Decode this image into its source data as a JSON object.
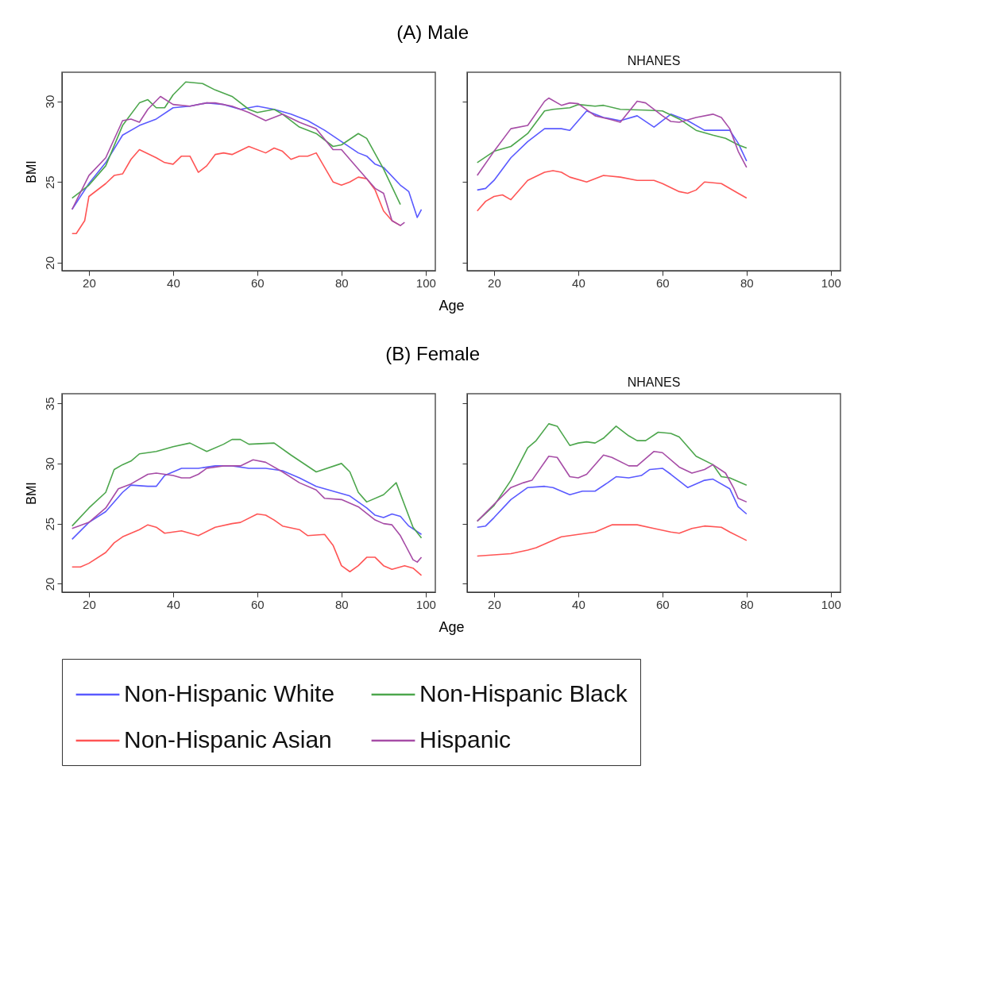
{
  "chart_data": [
    {
      "type": "line",
      "title": "(A) Male",
      "xlabel": "Age",
      "ylabel": "BMI",
      "xlim": [
        13.6,
        102.3
      ],
      "xticks": [
        20,
        40,
        60,
        80,
        100
      ],
      "ylim": [
        19.5,
        31.8
      ],
      "yticks": [
        20,
        25,
        30
      ],
      "grid": false,
      "legend": "bottom",
      "series": [
        {
          "name": "Non-Hispanic White",
          "color": "#5a5aff",
          "x": [
            16,
            20,
            24,
            28,
            32,
            36,
            40,
            44,
            48,
            52,
            56,
            60,
            64,
            68,
            72,
            76,
            80,
            84,
            86,
            88,
            90,
            94,
            96,
            98,
            99
          ],
          "values": [
            23.3,
            24.9,
            26.2,
            27.9,
            28.5,
            28.9,
            29.6,
            29.7,
            29.9,
            29.8,
            29.5,
            29.7,
            29.5,
            29.2,
            28.8,
            28.2,
            27.5,
            26.8,
            26.6,
            26.1,
            25.9,
            24.8,
            24.4,
            22.8,
            23.3
          ]
        },
        {
          "name": "Non-Hispanic Black",
          "color": "#4ca64c",
          "x": [
            16,
            20,
            24,
            28,
            32,
            34,
            36,
            38,
            40,
            43,
            47,
            50,
            54,
            58,
            60,
            64,
            66,
            70,
            74,
            78,
            80,
            84,
            86,
            90,
            94
          ],
          "values": [
            24.0,
            24.8,
            26.0,
            28.5,
            29.9,
            30.1,
            29.6,
            29.6,
            30.4,
            31.2,
            31.1,
            30.7,
            30.3,
            29.5,
            29.3,
            29.5,
            29.2,
            28.4,
            28.0,
            27.2,
            27.3,
            28.0,
            27.7,
            25.8,
            23.6
          ]
        },
        {
          "name": "Non-Hispanic Asian",
          "color": "#ff5555",
          "x": [
            16,
            17,
            19,
            20,
            24,
            26,
            28,
            30,
            32,
            36,
            38,
            40,
            42,
            44,
            46,
            48,
            50,
            52,
            54,
            58,
            62,
            64,
            66,
            68,
            70,
            72,
            74,
            78,
            80,
            82,
            84,
            86,
            88,
            90,
            92,
            94
          ],
          "values": [
            21.8,
            21.8,
            22.6,
            24.1,
            24.9,
            25.4,
            25.5,
            26.4,
            27.0,
            26.5,
            26.2,
            26.1,
            26.6,
            26.6,
            25.6,
            26.0,
            26.7,
            26.8,
            26.7,
            27.2,
            26.8,
            27.1,
            26.9,
            26.4,
            26.6,
            26.6,
            26.8,
            25.0,
            24.8,
            25.0,
            25.3,
            25.2,
            24.5,
            23.2,
            22.6,
            22.3
          ]
        },
        {
          "name": "Hispanic",
          "color": "#a64ca6",
          "x": [
            16,
            20,
            24,
            28,
            30,
            32,
            34,
            37,
            40,
            44,
            48,
            50,
            54,
            58,
            62,
            66,
            70,
            74,
            78,
            80,
            84,
            88,
            90,
            92,
            94,
            95
          ],
          "values": [
            23.3,
            25.4,
            26.5,
            28.8,
            28.9,
            28.7,
            29.5,
            30.3,
            29.8,
            29.7,
            29.9,
            29.9,
            29.7,
            29.3,
            28.8,
            29.2,
            28.7,
            28.3,
            27.0,
            27.0,
            25.8,
            24.6,
            24.3,
            22.6,
            22.3,
            22.5
          ]
        }
      ]
    },
    {
      "type": "line",
      "subtitle": "NHANES",
      "xlim": [
        13.6,
        102.3
      ],
      "xticks": [
        20,
        40,
        60,
        80,
        100
      ],
      "ylim": [
        19.5,
        31.8
      ],
      "yticks": [
        20,
        25,
        30
      ],
      "grid": false,
      "legend": "bottom",
      "tick_labels": "x",
      "series": [
        {
          "name": "Non-Hispanic White",
          "color": "#5a5aff",
          "x": [
            16,
            18,
            20,
            24,
            28,
            32,
            36,
            38,
            42,
            46,
            50,
            54,
            58,
            62,
            66,
            70,
            74,
            76,
            78,
            80
          ],
          "values": [
            24.5,
            24.6,
            25.1,
            26.5,
            27.5,
            28.3,
            28.3,
            28.2,
            29.4,
            29.0,
            28.8,
            29.1,
            28.4,
            29.2,
            28.8,
            28.2,
            28.2,
            28.2,
            27.4,
            26.3
          ]
        },
        {
          "name": "Non-Hispanic Black",
          "color": "#4ca64c",
          "x": [
            16,
            20,
            24,
            28,
            32,
            34,
            38,
            40,
            44,
            46,
            50,
            56,
            60,
            64,
            68,
            72,
            75,
            78,
            80
          ],
          "values": [
            26.2,
            26.9,
            27.2,
            28.0,
            29.4,
            29.5,
            29.6,
            29.8,
            29.7,
            29.75,
            29.5,
            29.45,
            29.4,
            28.9,
            28.2,
            27.9,
            27.7,
            27.3,
            27.1
          ]
        },
        {
          "name": "Non-Hispanic Asian",
          "color": "#ff5555",
          "x": [
            16,
            18,
            20,
            22,
            24,
            28,
            32,
            34,
            36,
            38,
            42,
            46,
            50,
            54,
            58,
            60,
            64,
            66,
            68,
            70,
            74,
            78,
            80
          ],
          "values": [
            23.2,
            23.8,
            24.1,
            24.2,
            23.9,
            25.1,
            25.6,
            25.7,
            25.6,
            25.3,
            25.0,
            25.4,
            25.3,
            25.1,
            25.1,
            24.9,
            24.4,
            24.3,
            24.5,
            25.0,
            24.9,
            24.3,
            24.0
          ]
        },
        {
          "name": "Hispanic",
          "color": "#a64ca6",
          "x": [
            16,
            20,
            24,
            28,
            32,
            33,
            36,
            38,
            40,
            44,
            48,
            50,
            54,
            56,
            60,
            62,
            64,
            68,
            72,
            74,
            76,
            78,
            80
          ],
          "values": [
            25.4,
            26.9,
            28.3,
            28.5,
            30.0,
            30.2,
            29.75,
            29.9,
            29.85,
            29.1,
            28.85,
            28.7,
            30.0,
            29.9,
            29.1,
            28.75,
            28.7,
            29.0,
            29.2,
            29.0,
            28.3,
            26.9,
            25.9
          ]
        }
      ]
    },
    {
      "type": "line",
      "title": "(B) Female",
      "xlabel": "Age",
      "ylabel": "BMI",
      "xlim": [
        13.6,
        102.3
      ],
      "xticks": [
        20,
        40,
        60,
        80,
        100
      ],
      "ylim": [
        19.3,
        35.8
      ],
      "yticks": [
        20,
        25,
        30,
        35
      ],
      "grid": false,
      "legend": "bottom",
      "series": [
        {
          "name": "Non-Hispanic White",
          "color": "#5a5aff",
          "x": [
            16,
            20,
            24,
            28,
            30,
            34,
            36,
            38,
            42,
            46,
            50,
            54,
            58,
            62,
            66,
            70,
            74,
            80,
            82,
            86,
            88,
            90,
            92,
            94,
            96,
            99
          ],
          "values": [
            23.7,
            25.1,
            26.0,
            27.6,
            28.2,
            28.1,
            28.1,
            29.0,
            29.6,
            29.6,
            29.8,
            29.8,
            29.6,
            29.6,
            29.4,
            28.8,
            28.1,
            27.5,
            27.3,
            26.3,
            25.7,
            25.5,
            25.8,
            25.6,
            24.8,
            24.1
          ]
        },
        {
          "name": "Non-Hispanic Black",
          "color": "#4ca64c",
          "x": [
            16,
            20,
            24,
            26,
            28,
            30,
            32,
            36,
            40,
            44,
            48,
            52,
            54,
            56,
            58,
            64,
            68,
            74,
            80,
            82,
            84,
            86,
            90,
            93,
            97,
            99
          ],
          "values": [
            24.8,
            26.3,
            27.6,
            29.5,
            29.9,
            30.2,
            30.8,
            31.0,
            31.4,
            31.7,
            31.0,
            31.6,
            32.0,
            32.0,
            31.6,
            31.7,
            30.7,
            29.3,
            30.0,
            29.3,
            27.6,
            26.8,
            27.4,
            28.4,
            24.7,
            23.8
          ]
        },
        {
          "name": "Non-Hispanic Asian",
          "color": "#ff5555",
          "x": [
            16,
            18,
            20,
            24,
            26,
            28,
            32,
            34,
            36,
            38,
            42,
            46,
            50,
            54,
            56,
            60,
            62,
            64,
            66,
            70,
            72,
            76,
            78,
            80,
            82,
            84,
            86,
            88,
            90,
            92,
            95,
            97,
            99
          ],
          "values": [
            21.4,
            21.4,
            21.7,
            22.6,
            23.4,
            23.9,
            24.5,
            24.9,
            24.7,
            24.2,
            24.4,
            24.0,
            24.7,
            25.0,
            25.1,
            25.8,
            25.7,
            25.3,
            24.8,
            24.5,
            24.0,
            24.1,
            23.2,
            21.5,
            21.0,
            21.5,
            22.2,
            22.2,
            21.5,
            21.2,
            21.5,
            21.3,
            20.7
          ]
        },
        {
          "name": "Hispanic",
          "color": "#a64ca6",
          "x": [
            16,
            20,
            24,
            27,
            30,
            34,
            36,
            40,
            42,
            44,
            46,
            48,
            52,
            56,
            59,
            62,
            66,
            70,
            74,
            76,
            80,
            84,
            88,
            90,
            92,
            94,
            97,
            98,
            99
          ],
          "values": [
            24.6,
            25.1,
            26.3,
            27.9,
            28.3,
            29.1,
            29.2,
            29.0,
            28.8,
            28.8,
            29.1,
            29.6,
            29.8,
            29.8,
            30.3,
            30.1,
            29.3,
            28.4,
            27.8,
            27.1,
            27.0,
            26.4,
            25.3,
            25.0,
            24.9,
            24.0,
            22.0,
            21.8,
            22.2
          ]
        }
      ]
    },
    {
      "type": "line",
      "subtitle": "NHANES",
      "xlim": [
        13.6,
        102.3
      ],
      "xticks": [
        20,
        40,
        60,
        80,
        100
      ],
      "ylim": [
        19.3,
        35.8
      ],
      "yticks": [
        20,
        25,
        30,
        35
      ],
      "grid": false,
      "legend": "bottom",
      "tick_labels": "x",
      "series": [
        {
          "name": "Non-Hispanic White",
          "color": "#5a5aff",
          "x": [
            16,
            18,
            20,
            24,
            28,
            32,
            34,
            38,
            41,
            44,
            47,
            49,
            52,
            55,
            57,
            60,
            62,
            66,
            70,
            72,
            76,
            78,
            80
          ],
          "values": [
            24.7,
            24.8,
            25.5,
            27.0,
            28.0,
            28.1,
            28.0,
            27.4,
            27.7,
            27.7,
            28.4,
            28.9,
            28.8,
            29.0,
            29.5,
            29.6,
            29.1,
            28.0,
            28.6,
            28.7,
            27.9,
            26.4,
            25.8
          ]
        },
        {
          "name": "Non-Hispanic Black",
          "color": "#4ca64c",
          "x": [
            16,
            20,
            24,
            28,
            30,
            33,
            35,
            38,
            40,
            42,
            44,
            46,
            49,
            52,
            54,
            56,
            59,
            62,
            64,
            68,
            72,
            74,
            76,
            80
          ],
          "values": [
            25.2,
            26.5,
            28.6,
            31.3,
            31.9,
            33.3,
            33.1,
            31.5,
            31.7,
            31.8,
            31.7,
            32.1,
            33.1,
            32.3,
            31.9,
            31.9,
            32.6,
            32.5,
            32.2,
            30.6,
            29.9,
            28.9,
            28.8,
            28.2
          ]
        },
        {
          "name": "Non-Hispanic Asian",
          "color": "#ff5555",
          "x": [
            16,
            20,
            24,
            28,
            30,
            34,
            36,
            40,
            44,
            48,
            52,
            54,
            58,
            62,
            64,
            67,
            70,
            74,
            76,
            80
          ],
          "values": [
            22.3,
            22.4,
            22.5,
            22.8,
            23.0,
            23.6,
            23.9,
            24.1,
            24.3,
            24.9,
            24.9,
            24.9,
            24.6,
            24.3,
            24.2,
            24.6,
            24.8,
            24.7,
            24.3,
            23.6
          ]
        },
        {
          "name": "Hispanic",
          "color": "#a64ca6",
          "x": [
            16,
            20,
            24,
            27,
            29,
            33,
            35,
            38,
            40,
            42,
            46,
            48,
            52,
            54,
            58,
            60,
            64,
            67,
            70,
            72,
            75,
            77,
            78,
            80
          ],
          "values": [
            25.2,
            26.6,
            28.0,
            28.4,
            28.6,
            30.6,
            30.5,
            28.9,
            28.8,
            29.1,
            30.7,
            30.5,
            29.8,
            29.8,
            31.0,
            30.9,
            29.7,
            29.2,
            29.5,
            29.9,
            29.2,
            27.9,
            27.1,
            26.8
          ]
        }
      ]
    }
  ]
}
